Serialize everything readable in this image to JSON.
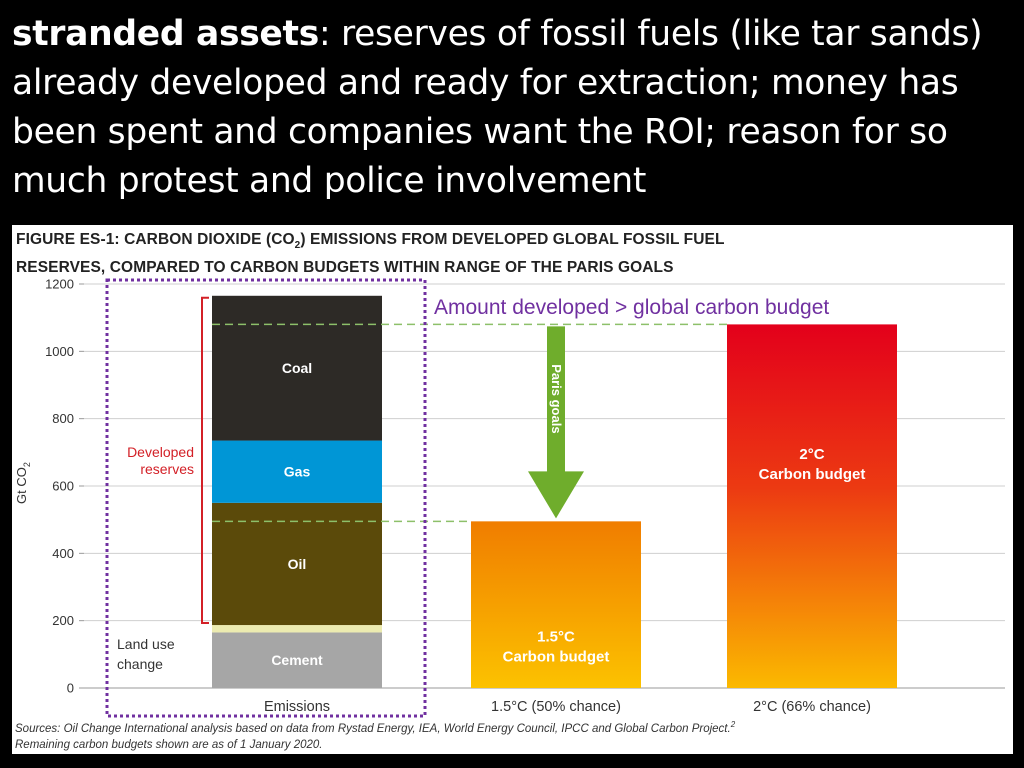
{
  "headline": {
    "term": "stranded assets",
    "definition": ": reserves of fossil fuels (like tar sands) already developed and ready for extraction; money has been spent and companies want the ROI; reason for so much protest and police involvement"
  },
  "figure": {
    "title_line1_a": "FIGURE ES-1: CARBON DIOXIDE (CO",
    "title_line1_sub": "2",
    "title_line1_b": ") EMISSIONS FROM DEVELOPED GLOBAL FOSSIL FUEL",
    "title_line2": "RESERVES, COMPARED TO CARBON BUDGETS WITHIN RANGE OF THE PARIS GOALS",
    "sources_line1": "Sources: Oil Change International analysis based on data from Rystad Energy, IEA, World Energy Council, IPCC and Global Carbon Project.",
    "sources_sup": "2",
    "sources_line2": "Remaining carbon budgets shown are as of 1 January 2020."
  },
  "colors": {
    "coal": "#2d2a26",
    "gas": "#0096d6",
    "oil": "#5b4a0a",
    "land_use": "#ecebb0",
    "cement": "#a6a6a6",
    "budget_15_top": "#f07d00",
    "budget_15_bottom": "#fcc200",
    "budget_2_top": "#e3001b",
    "budget_2_bottom": "#fbb900",
    "arrow": "#6fad2c",
    "bracket": "#d32027",
    "highlight_box": "#7030a0",
    "dashed_line": "#8dc06a"
  },
  "chart_data": {
    "type": "bar",
    "ylabel_main": "Gt CO",
    "ylabel_sub": "2",
    "ylim": [
      0,
      1200
    ],
    "yticks": [
      0,
      200,
      400,
      600,
      800,
      1000,
      1200
    ],
    "grid": true,
    "categories": [
      "Emissions",
      "1.5°C (50% chance)",
      "2°C (66% chance)"
    ],
    "emissions_stack": [
      {
        "name": "Cement",
        "value": 165,
        "label": "Cement",
        "color_key": "cement"
      },
      {
        "name": "Land use change",
        "value": 22,
        "label_line1": "Land use",
        "label_line2": "change",
        "color_key": "land_use"
      },
      {
        "name": "Oil",
        "value": 363,
        "label": "Oil",
        "color_key": "oil"
      },
      {
        "name": "Gas",
        "value": 185,
        "label": "Gas",
        "color_key": "gas"
      },
      {
        "name": "Coal",
        "value": 430,
        "label": "Coal",
        "color_key": "coal"
      }
    ],
    "budgets": [
      {
        "category": "1.5°C (50% chance)",
        "value": 495,
        "label_line1": "1.5°C",
        "label_line2": "Carbon budget"
      },
      {
        "category": "2°C (66% chance)",
        "value": 1080,
        "label_line1": "2°C",
        "label_line2": "Carbon budget"
      }
    ],
    "annotations": {
      "developed_reserves_line1": "Developed",
      "developed_reserves_line2": "reserves",
      "paris_goals": "Paris goals",
      "amount_developed": "Amount developed > global carbon budget"
    }
  }
}
